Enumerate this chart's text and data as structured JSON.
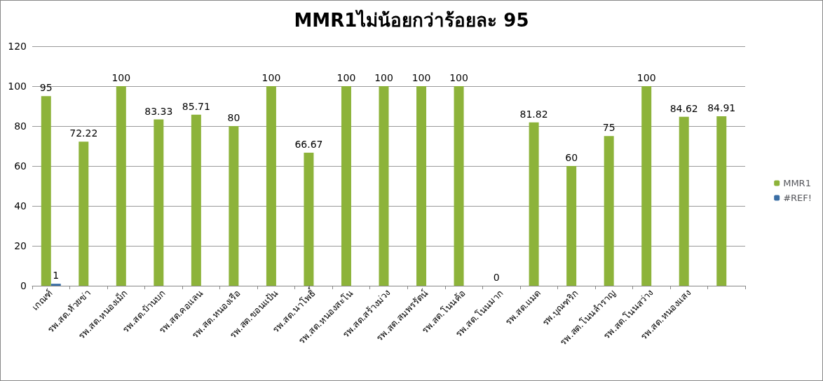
{
  "chart_data": {
    "type": "bar",
    "title": "MMR1ไม่น้อยกว่าร้อยละ 95",
    "categories": [
      "เกณฑ์",
      "รพ.สต.ห้วยข่า",
      "รพ.สต.หนองเม็ก",
      "รพ.สต.บ้านบก",
      "รพ.สต.คอแลน",
      "รพ.สต.หนองเรือ",
      "รพ.สต.ขอนแป้น",
      "รพ.สต.นาโพธิ์",
      "รพ.สต.หนองสะโน",
      "รพ.สต.สร้างม่วง",
      "รพ.สต.สมพรรัตน์",
      "รพ.สต.โนนค้อ",
      "รพ.สต.โนนมาก",
      "รพ.สต.แมด",
      "รพ.บุณฑริก",
      "รพ.สต.โนนลำราญ",
      "รพ.สต.โนนสว่าง",
      "รพ.สต.หนองแสง",
      null
    ],
    "series": [
      {
        "name": "MMR1",
        "color": "#8db33a",
        "values": [
          95,
          72.22,
          100,
          83.33,
          85.71,
          80,
          100,
          66.67,
          100,
          100,
          100,
          100,
          0,
          81.82,
          60,
          75,
          100,
          84.62,
          84.91
        ]
      },
      {
        "name": "#REF!",
        "color": "#3a6ea5",
        "values": [
          1,
          null,
          null,
          null,
          null,
          null,
          null,
          null,
          null,
          null,
          null,
          null,
          null,
          null,
          null,
          null,
          null,
          null,
          null
        ]
      }
    ],
    "ylim": [
      0,
      120
    ],
    "yticks": [
      0,
      20,
      40,
      60,
      80,
      100,
      120
    ],
    "grid": "y",
    "legend": "right",
    "data_labels": true
  }
}
